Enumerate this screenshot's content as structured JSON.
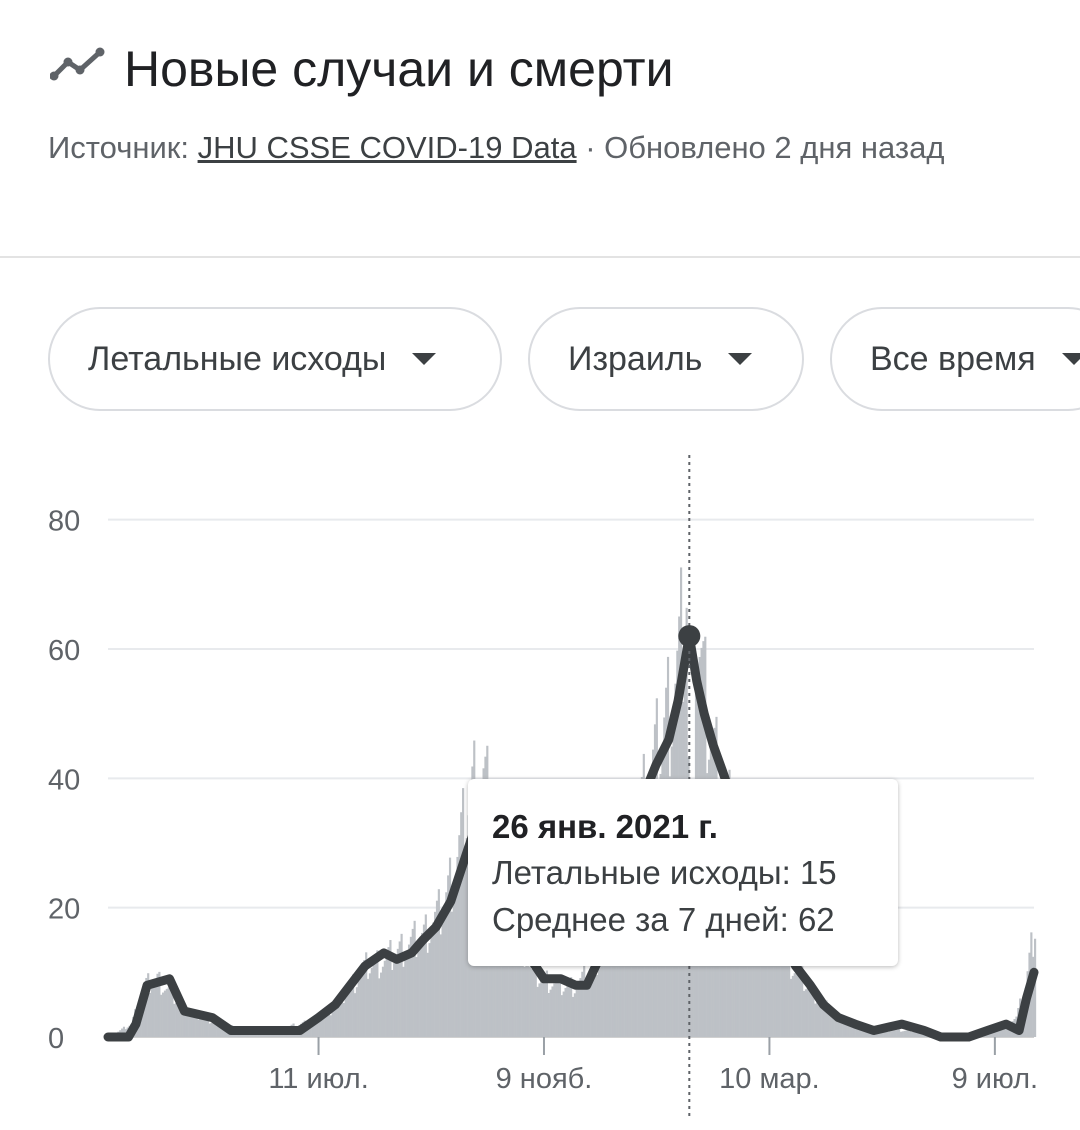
{
  "header": {
    "title": "Новые случаи и смерти",
    "source_prefix": "Источник:",
    "source_link": "JHU CSSE COVID-19 Data",
    "updated": " · Обновлено 2 дня назад"
  },
  "filters": {
    "metric": "Летальные исходы",
    "region": "Израиль",
    "period": "Все время"
  },
  "tooltip": {
    "date": "26 янв. 2021 г.",
    "daily_label": "Летальные исходы:",
    "daily_value": "15",
    "avg_label": "Среднее за 7 дней:",
    "avg_value": "62"
  },
  "colors": {
    "bars": "#bdc1c6",
    "line": "#3c4043",
    "grid": "#e8eaed",
    "text": "#202124",
    "muted": "#5f6368"
  },
  "icons": {
    "title_icon": "trending-line-icon",
    "dropdown": "caret-down-icon"
  },
  "chart_data": {
    "type": "bar",
    "overlay": "line (7-day average)",
    "title": "",
    "xlabel": "",
    "ylabel": "",
    "ylim": [
      0,
      90
    ],
    "yticks": [
      0,
      20,
      40,
      60,
      80
    ],
    "x_tick_labels": [
      "11 июл.",
      "9 нояб.",
      "10 мар.",
      "9 июл."
    ],
    "x_ticks": [
      "2020-07-11",
      "2020-11-09",
      "2021-03-10",
      "2021-07-09"
    ],
    "x_range": [
      "2020-03-20",
      "2021-07-30"
    ],
    "grid": true,
    "highlight": {
      "date": "2021-01-26",
      "daily": 15,
      "avg": 62
    },
    "series": [
      {
        "name": "Летальные исходы",
        "kind": "bar",
        "points": [
          [
            "2020-03-20",
            0
          ],
          [
            "2020-04-01",
            2
          ],
          [
            "2020-04-08",
            8
          ],
          [
            "2020-04-15",
            9
          ],
          [
            "2020-04-22",
            7
          ],
          [
            "2020-05-01",
            4
          ],
          [
            "2020-05-10",
            3
          ],
          [
            "2020-05-20",
            2
          ],
          [
            "2020-06-01",
            1
          ],
          [
            "2020-06-15",
            1
          ],
          [
            "2020-07-01",
            2
          ],
          [
            "2020-07-11",
            3
          ],
          [
            "2020-07-20",
            5
          ],
          [
            "2020-07-28",
            8
          ],
          [
            "2020-08-05",
            11
          ],
          [
            "2020-08-15",
            12
          ],
          [
            "2020-08-25",
            14
          ],
          [
            "2020-09-05",
            16
          ],
          [
            "2020-09-15",
            20
          ],
          [
            "2020-09-22",
            27
          ],
          [
            "2020-09-28",
            35
          ],
          [
            "2020-10-04",
            42
          ],
          [
            "2020-10-10",
            37
          ],
          [
            "2020-10-18",
            28
          ],
          [
            "2020-10-26",
            17
          ],
          [
            "2020-11-02",
            10
          ],
          [
            "2020-11-09",
            9
          ],
          [
            "2020-11-18",
            8
          ],
          [
            "2020-11-26",
            8
          ],
          [
            "2020-12-05",
            11
          ],
          [
            "2020-12-15",
            18
          ],
          [
            "2020-12-24",
            28
          ],
          [
            "2020-12-31",
            37
          ],
          [
            "2021-01-08",
            44
          ],
          [
            "2021-01-15",
            52
          ],
          [
            "2021-01-20",
            58
          ],
          [
            "2021-01-24",
            70
          ],
          [
            "2021-01-26",
            15
          ],
          [
            "2021-01-29",
            65
          ],
          [
            "2021-02-03",
            52
          ],
          [
            "2021-02-08",
            44
          ],
          [
            "2021-02-14",
            37
          ],
          [
            "2021-02-21",
            29
          ],
          [
            "2021-03-01",
            22
          ],
          [
            "2021-03-10",
            16
          ],
          [
            "2021-03-20",
            12
          ],
          [
            "2021-03-30",
            8
          ],
          [
            "2021-04-08",
            5
          ],
          [
            "2021-04-16",
            3
          ],
          [
            "2021-04-25",
            2
          ],
          [
            "2021-05-05",
            1
          ],
          [
            "2021-05-20",
            1
          ],
          [
            "2021-06-05",
            1
          ],
          [
            "2021-06-20",
            0
          ],
          [
            "2021-07-05",
            1
          ],
          [
            "2021-07-14",
            2
          ],
          [
            "2021-07-20",
            3
          ],
          [
            "2021-07-25",
            8
          ],
          [
            "2021-07-28",
            14
          ],
          [
            "2021-07-30",
            18
          ]
        ]
      },
      {
        "name": "Среднее за 7 дней",
        "kind": "line",
        "points": [
          [
            "2020-03-20",
            0
          ],
          [
            "2020-03-31",
            0
          ],
          [
            "2020-04-04",
            2
          ],
          [
            "2020-04-10",
            8
          ],
          [
            "2020-04-22",
            9
          ],
          [
            "2020-04-30",
            4
          ],
          [
            "2020-05-15",
            3
          ],
          [
            "2020-05-25",
            1
          ],
          [
            "2020-06-10",
            1
          ],
          [
            "2020-07-01",
            1
          ],
          [
            "2020-07-11",
            3
          ],
          [
            "2020-07-20",
            5
          ],
          [
            "2020-07-28",
            8
          ],
          [
            "2020-08-05",
            11
          ],
          [
            "2020-08-15",
            13
          ],
          [
            "2020-08-22",
            12
          ],
          [
            "2020-08-30",
            13
          ],
          [
            "2020-09-05",
            15
          ],
          [
            "2020-09-12",
            17
          ],
          [
            "2020-09-20",
            21
          ],
          [
            "2020-09-28",
            28
          ],
          [
            "2020-10-05",
            34
          ],
          [
            "2020-10-10",
            36
          ],
          [
            "2020-10-18",
            30
          ],
          [
            "2020-10-26",
            20
          ],
          [
            "2020-11-02",
            12
          ],
          [
            "2020-11-09",
            9
          ],
          [
            "2020-11-18",
            9
          ],
          [
            "2020-11-26",
            8
          ],
          [
            "2020-12-02",
            8
          ],
          [
            "2020-12-10",
            13
          ],
          [
            "2020-12-18",
            20
          ],
          [
            "2020-12-25",
            30
          ],
          [
            "2021-01-01",
            37
          ],
          [
            "2021-01-08",
            42
          ],
          [
            "2021-01-15",
            46
          ],
          [
            "2021-01-20",
            52
          ],
          [
            "2021-01-26",
            62
          ],
          [
            "2021-01-30",
            55
          ],
          [
            "2021-02-03",
            50
          ],
          [
            "2021-02-08",
            45
          ],
          [
            "2021-02-13",
            41
          ],
          [
            "2021-02-20",
            35
          ],
          [
            "2021-02-27",
            28
          ],
          [
            "2021-03-05",
            22
          ],
          [
            "2021-03-10",
            19
          ],
          [
            "2021-03-17",
            15
          ],
          [
            "2021-03-24",
            11
          ],
          [
            "2021-04-01",
            8
          ],
          [
            "2021-04-08",
            5
          ],
          [
            "2021-04-16",
            3
          ],
          [
            "2021-04-25",
            2
          ],
          [
            "2021-05-05",
            1
          ],
          [
            "2021-05-20",
            2
          ],
          [
            "2021-06-01",
            1
          ],
          [
            "2021-06-10",
            0
          ],
          [
            "2021-06-25",
            0
          ],
          [
            "2021-07-05",
            1
          ],
          [
            "2021-07-15",
            2
          ],
          [
            "2021-07-22",
            1
          ],
          [
            "2021-07-26",
            6
          ],
          [
            "2021-07-30",
            10
          ]
        ]
      }
    ]
  }
}
